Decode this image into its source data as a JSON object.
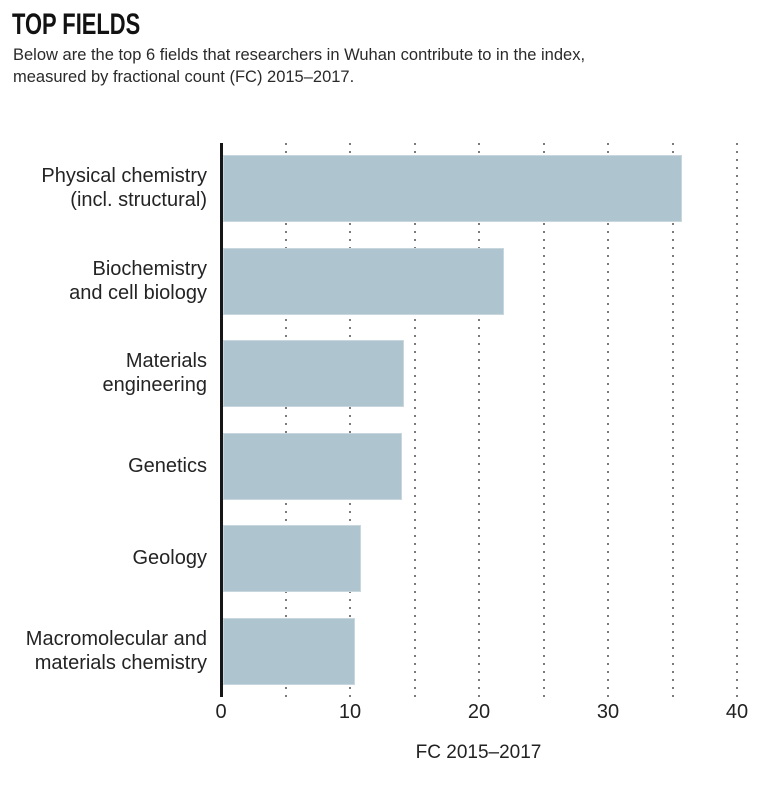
{
  "header": {
    "title": "TOP FIELDS",
    "subtitle_lines": [
      "Below are the top 6 fields that researchers in Wuhan contribute to in the index,",
      "measured by fractional count (FC) 2015–2017."
    ]
  },
  "chart_data": {
    "type": "bar",
    "orientation": "horizontal",
    "title": "TOP FIELDS",
    "subtitle": "Below are the top 6 fields that researchers in Wuhan contribute to in the index, measured by fractional count (FC) 2015–2017.",
    "categories": [
      "Physical chemistry (incl. structural)",
      "Biochemistry and cell biology",
      "Materials engineering",
      "Genetics",
      "Geology",
      "Macromolecular and materials chemistry"
    ],
    "label_lines": [
      [
        "Physical chemistry",
        "(incl. structural)"
      ],
      [
        "Biochemistry",
        "and cell biology"
      ],
      [
        "Materials",
        "engineering"
      ],
      [
        "Genetics"
      ],
      [
        "Geology"
      ],
      [
        "Macromolecular and",
        "materials chemistry"
      ]
    ],
    "values": [
      35.6,
      21.8,
      14.0,
      13.9,
      10.7,
      10.2
    ],
    "xlabel": "FC 2015–2017",
    "xlim": [
      0,
      40
    ],
    "xticks": [
      0,
      10,
      20,
      30,
      40
    ],
    "grid_interval": 5,
    "grid_style": "dotted-vertical",
    "legend": "none",
    "bar_color": "#aec5cf",
    "axis_color": "#161616",
    "grid_dot_color": "#7b7b7b"
  }
}
